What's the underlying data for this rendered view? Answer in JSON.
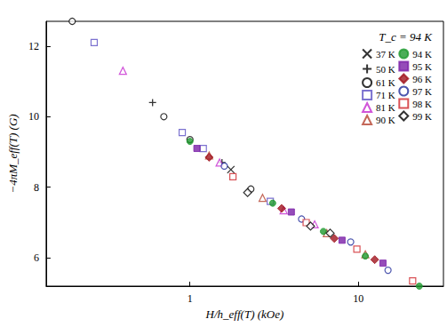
{
  "chart_data": {
    "type": "scatter",
    "annotation": "T_c = 94 K",
    "x_label": "H/h_eff(T) (kOe)",
    "y_label": "−4πM_eff(T) (G)",
    "log": "x",
    "grid": false,
    "legend": "upper right",
    "xlim": [
      0.14,
      32
    ],
    "xticks": [
      1,
      10
    ],
    "ylim": [
      5.2,
      12.7
    ],
    "yticks": [
      6,
      8,
      10,
      12
    ],
    "series": [
      {
        "name": "37 K",
        "color": "#000000",
        "marker": "x",
        "x": [
          1.75
        ],
        "values": [
          8.5
        ]
      },
      {
        "name": "50 K",
        "color": "#000000",
        "marker": "plus",
        "x": [
          0.6,
          1.55
        ],
        "values": [
          10.4,
          8.7
        ]
      },
      {
        "name": "61 K",
        "color": "#000000",
        "marker": "open_circle",
        "x": [
          0.2,
          0.7,
          1.0,
          2.3
        ],
        "values": [
          12.7,
          10.0,
          9.35,
          7.95
        ]
      },
      {
        "name": "71 K",
        "color": "#5b4fc4",
        "marker": "open_square",
        "x": [
          0.27,
          0.9,
          1.2,
          3.0
        ],
        "values": [
          12.1,
          9.55,
          9.1,
          7.6
        ]
      },
      {
        "name": "81 K",
        "color": "#c62ad0",
        "marker": "open_triangle",
        "x": [
          0.4,
          1.5,
          3.6,
          5.5
        ],
        "values": [
          11.3,
          8.7,
          7.35,
          6.95
        ]
      },
      {
        "name": "90 K",
        "color": "#b5422f",
        "marker": "open_triangle",
        "x": [
          1.3,
          2.7,
          6.5,
          11
        ],
        "values": [
          8.9,
          7.7,
          6.7,
          6.1
        ]
      },
      {
        "name": "94 K",
        "color": "#1e9a2e",
        "marker": "filled_circle",
        "x": [
          1.0,
          3.1,
          6.2,
          11,
          23
        ],
        "values": [
          9.3,
          7.55,
          6.75,
          6.05,
          5.2
        ]
      },
      {
        "name": "95 K",
        "color": "#7a1fa8",
        "marker": "filled_square",
        "x": [
          1.1,
          4.0,
          8.0,
          14
        ],
        "values": [
          9.1,
          7.3,
          6.5,
          5.85
        ]
      },
      {
        "name": "96 K",
        "color": "#a0141e",
        "marker": "filled_diamond",
        "x": [
          1.3,
          3.5,
          7.2,
          12.5
        ],
        "values": [
          8.85,
          7.4,
          6.55,
          5.95
        ]
      },
      {
        "name": "97 K",
        "color": "#1f2a9a",
        "marker": "open_circle",
        "x": [
          1.6,
          4.6,
          9.0,
          15
        ],
        "values": [
          8.6,
          7.1,
          6.45,
          5.65
        ]
      },
      {
        "name": "98 K",
        "color": "#d0262a",
        "marker": "open_square",
        "x": [
          1.8,
          4.9,
          9.8,
          21
        ],
        "values": [
          8.3,
          7.0,
          6.25,
          5.35
        ]
      },
      {
        "name": "99 K",
        "color": "#000000",
        "marker": "open_diamond",
        "x": [
          2.2,
          5.2,
          6.8
        ],
        "values": [
          7.85,
          6.9,
          6.7
        ]
      }
    ]
  }
}
